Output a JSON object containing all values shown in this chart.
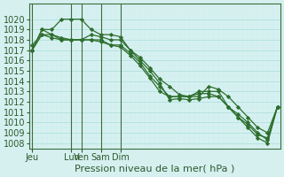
{
  "background_color": "#d6f0f0",
  "grid_color_major": "#aadddd",
  "grid_color_minor": "#c8eeee",
  "line_color": "#2d6e2d",
  "marker_color": "#2d6e2d",
  "xlabel": "Pression niveau de la mer( hPa )",
  "ylim": [
    1008,
    1021
  ],
  "yticks": [
    1008,
    1009,
    1010,
    1011,
    1012,
    1013,
    1014,
    1015,
    1016,
    1017,
    1018,
    1019,
    1020
  ],
  "day_labels": [
    "Jeu",
    "Lun",
    "Ven",
    "Sam",
    "Dim"
  ],
  "day_positions": [
    0,
    4,
    5,
    7,
    9
  ],
  "series": [
    [
      1017.0,
      1019.0,
      1019.0,
      1020.0,
      1020.0,
      1020.0,
      1019.0,
      1018.5,
      1018.5,
      1018.3,
      1017.0,
      1016.3,
      1015.3,
      1014.2,
      1013.5,
      1012.7,
      1012.5,
      1012.5,
      1013.5,
      1013.2,
      1012.5,
      1011.5,
      1010.5,
      1009.5,
      1009.0,
      1011.5
    ],
    [
      1017.0,
      1019.0,
      1018.5,
      1018.2,
      1018.0,
      1018.0,
      1018.5,
      1018.3,
      1018.0,
      1018.0,
      1017.0,
      1016.0,
      1015.0,
      1013.8,
      1012.2,
      1012.3,
      1012.2,
      1012.3,
      1012.5,
      1012.5,
      1011.5,
      1010.5,
      1009.5,
      1008.5,
      1008.0,
      1011.5
    ],
    [
      1017.5,
      1018.5,
      1018.5,
      1018.0,
      1018.0,
      1018.0,
      1018.0,
      1018.0,
      1017.5,
      1017.5,
      1016.7,
      1015.8,
      1014.5,
      1013.5,
      1012.5,
      1012.5,
      1012.5,
      1013.0,
      1013.0,
      1013.0,
      1011.5,
      1010.8,
      1010.0,
      1009.0,
      1008.3,
      1011.5
    ],
    [
      1017.0,
      1018.5,
      1018.2,
      1018.0,
      1018.0,
      1018.0,
      1018.0,
      1017.8,
      1017.5,
      1017.3,
      1016.5,
      1015.5,
      1014.3,
      1013.0,
      1012.5,
      1012.5,
      1012.5,
      1012.8,
      1012.8,
      1012.5,
      1011.5,
      1010.5,
      1009.8,
      1008.8,
      1008.5,
      1011.5
    ]
  ],
  "title_fontsize": 9,
  "tick_fontsize": 7,
  "label_fontsize": 8
}
